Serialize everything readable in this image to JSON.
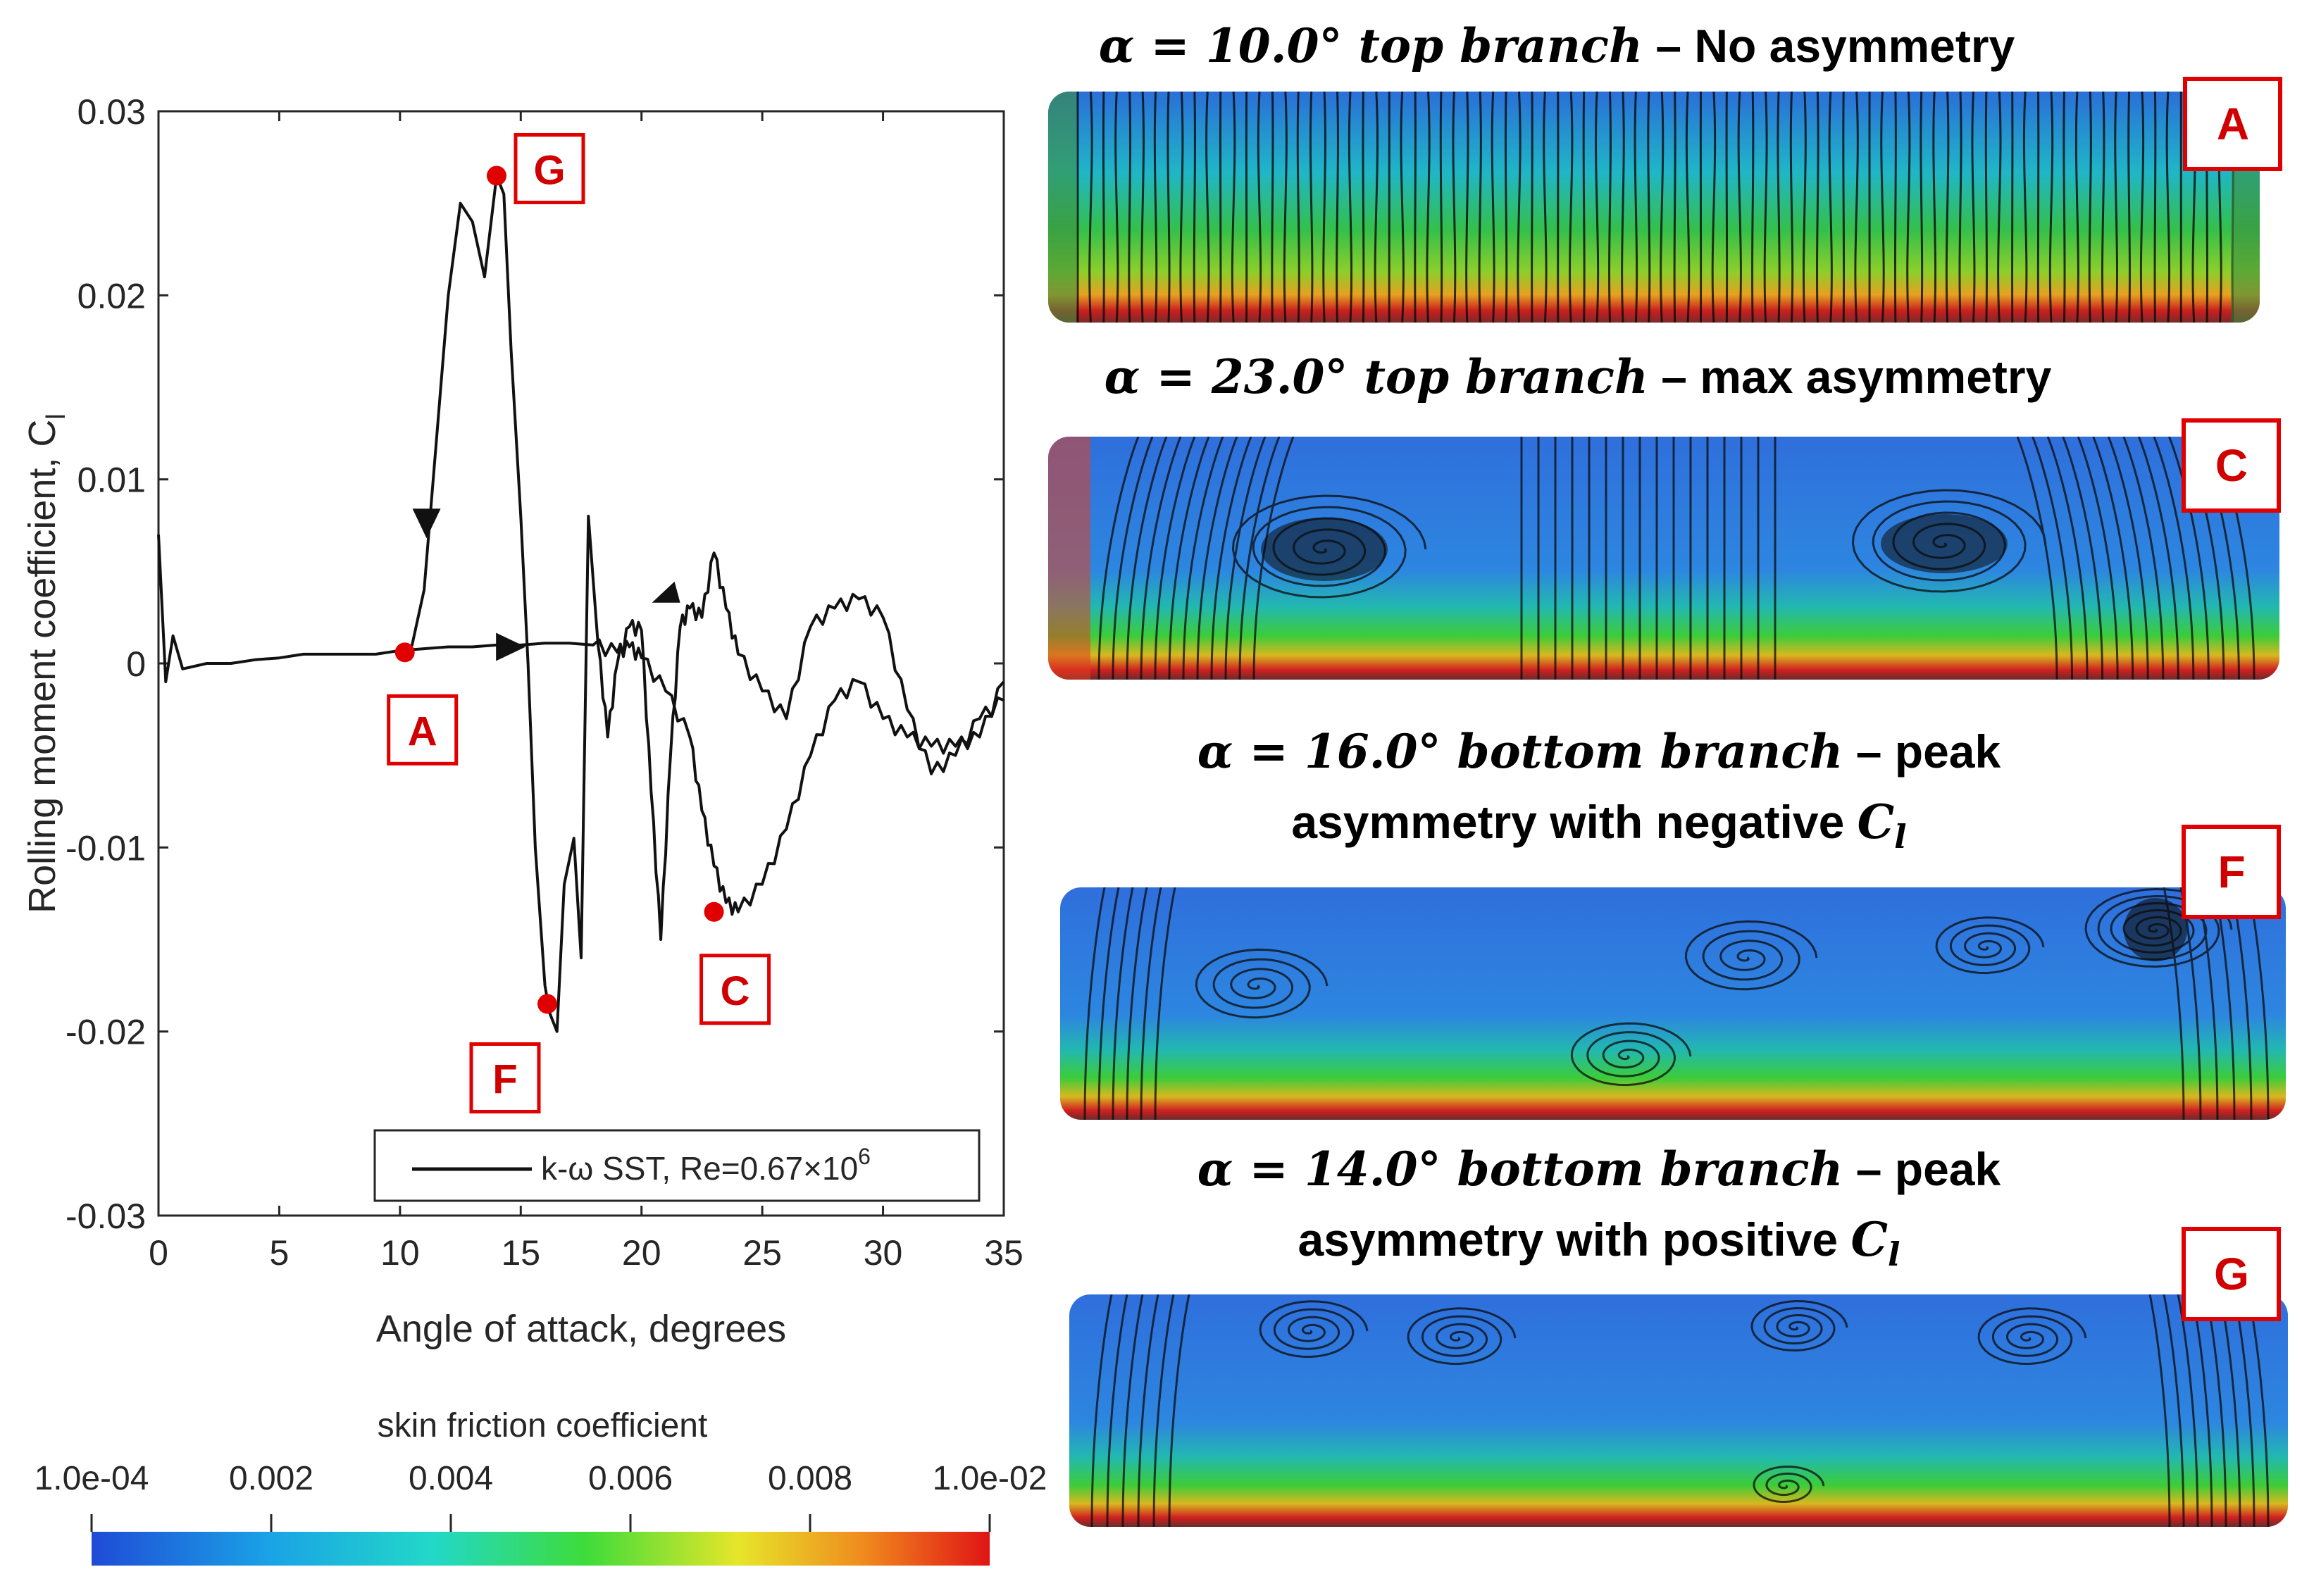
{
  "colors": {
    "accent_red": "#e00000",
    "curve": "#111111",
    "frame": "#262626"
  },
  "chart_data": {
    "type": "line",
    "xlabel": "Angle of attack, degrees",
    "ylabel": "Rolling moment coefficient, C",
    "ylabel_sub": "l",
    "xlim": [
      0,
      35
    ],
    "ylim": [
      -0.03,
      0.03
    ],
    "xticks": [
      0,
      5,
      10,
      15,
      20,
      25,
      30,
      35
    ],
    "yticks": [
      -0.03,
      -0.02,
      -0.01,
      0,
      0.01,
      0.02,
      0.03
    ],
    "ytick_labels": [
      "-0.03",
      "-0.02",
      "-0.01",
      "0",
      "0.01",
      "0.02",
      "0.03"
    ],
    "grid": false,
    "legend": {
      "position": "bottom-right",
      "label": "k-ω SST, Re=0.67×10",
      "label_sup": "6"
    },
    "series": [
      {
        "x": [
          0,
          0.3,
          0.6,
          1,
          2,
          3,
          4,
          5,
          6,
          7,
          8,
          9,
          10,
          11,
          12,
          13,
          14,
          15,
          16,
          17,
          18,
          19,
          19.5,
          20,
          21,
          22,
          22.5,
          23,
          23.5,
          24,
          25,
          26,
          27,
          28,
          29,
          30,
          31,
          32,
          33,
          34,
          35
        ],
        "y": [
          0.007,
          -0.001,
          0.0015,
          -0.0003,
          0,
          0,
          0.0002,
          0.0003,
          0.0005,
          0.0005,
          0.0005,
          0.0005,
          0.0007,
          0.0008,
          0.0009,
          0.0009,
          0.001,
          0.001,
          0.0011,
          0.0011,
          0.001,
          0.0006,
          0.0009,
          0.0003,
          -0.0015,
          -0.004,
          -0.008,
          -0.011,
          -0.013,
          -0.0135,
          -0.012,
          -0.009,
          -0.005,
          -0.002,
          -0.001,
          -0.003,
          -0.004,
          -0.0045,
          -0.0045,
          -0.004,
          -0.001
        ]
      },
      {
        "x": [
          10,
          10.5,
          11,
          11.5,
          12,
          12.5,
          13,
          13.5,
          14,
          14.3,
          14.6,
          15,
          15.3,
          15.6,
          16,
          16.2,
          16.5,
          16.8,
          17.2,
          17.5,
          17.8,
          18.2,
          18.6,
          19,
          19.5,
          20,
          20.4,
          20.8,
          21.2,
          21.6,
          22,
          22.5,
          23,
          23.5,
          24,
          25,
          26,
          27,
          28,
          29,
          30,
          31,
          32,
          33,
          34,
          35
        ],
        "y": [
          0.0005,
          0.001,
          0.004,
          0.012,
          0.02,
          0.025,
          0.024,
          0.021,
          0.0265,
          0.0255,
          0.017,
          0.008,
          0.0,
          -0.01,
          -0.0175,
          -0.019,
          -0.02,
          -0.012,
          -0.0095,
          -0.016,
          0.008,
          0.001,
          -0.004,
          0.0,
          0.002,
          0.0018,
          -0.007,
          -0.015,
          -0.005,
          0.002,
          0.003,
          0.0025,
          0.006,
          0.003,
          0.0005,
          -0.0015,
          -0.003,
          0.002,
          0.003,
          0.0035,
          0.0025,
          -0.0025,
          -0.006,
          -0.005,
          -0.003,
          -0.002
        ]
      }
    ],
    "points": [
      {
        "label": "A",
        "x": 10.2,
        "y": 0.0006
      },
      {
        "label": "G",
        "x": 14.0,
        "y": 0.0265
      },
      {
        "label": "F",
        "x": 16.1,
        "y": -0.0185
      },
      {
        "label": "C",
        "x": 23.0,
        "y": -0.0135
      }
    ]
  },
  "colorbar": {
    "title": "skin friction coefficient",
    "tick_labels": [
      "1.0e-04",
      "0.002",
      "0.004",
      "0.006",
      "0.008",
      "1.0e-02"
    ]
  },
  "panels": [
    {
      "badge": "A",
      "title_math": "α = 10.0° top branch",
      "title_plain": " – No asymmetry"
    },
    {
      "badge": "C",
      "title_math": "α = 23.0° top branch",
      "title_plain": " – max asymmetry"
    },
    {
      "badge": "F",
      "title_math": "α = 16.0° bottom branch",
      "title_plain": " – peak",
      "title_line2": "asymmetry with negative ",
      "title_line2_math": "C",
      "title_line2_sub": "l"
    },
    {
      "badge": "G",
      "title_math": "α = 14.0° bottom branch",
      "title_plain": " – peak",
      "title_line2": "asymmetry with positive ",
      "title_line2_math": "C",
      "title_line2_sub": "l"
    }
  ]
}
